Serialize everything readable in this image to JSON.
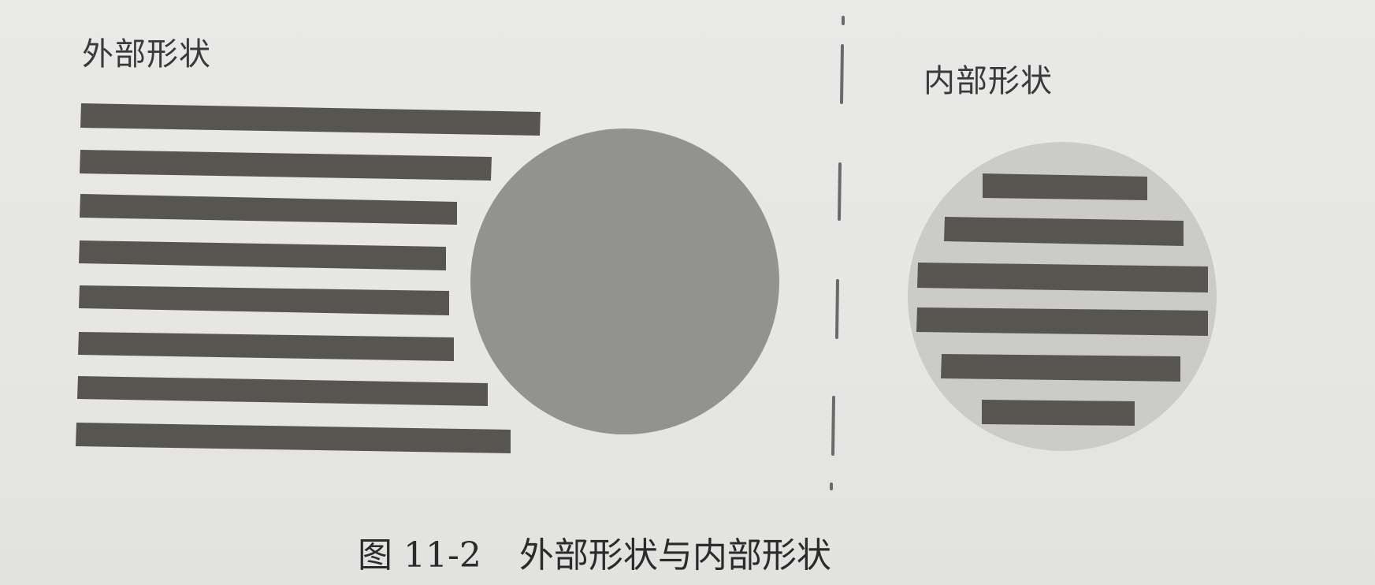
{
  "figure": {
    "outer_label": "外部形状",
    "inner_label": "内部形状",
    "caption": {
      "prefix": "图",
      "number": "11-2",
      "title": "外部形状与内部形状"
    }
  },
  "colors": {
    "background": "#e7e7e5",
    "bar": "#5a5753",
    "outer_circle": "#959593",
    "inner_circle_fill": "#cfcfcd",
    "divider": "#6a6a6a"
  }
}
